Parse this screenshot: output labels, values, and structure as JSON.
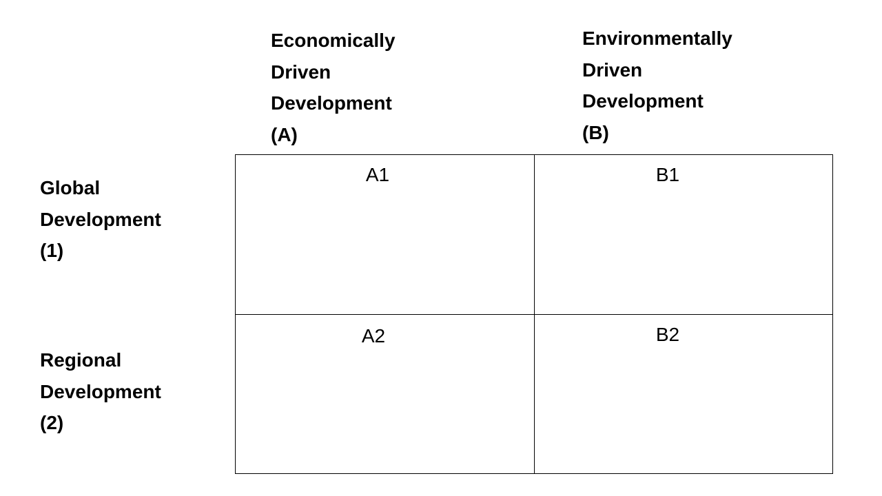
{
  "columns": [
    {
      "lines": [
        "Economically",
        "Driven",
        "Development",
        "(A)"
      ]
    },
    {
      "lines": [
        "Environmentally",
        "Driven",
        "Development",
        "(B)"
      ]
    }
  ],
  "rows": [
    {
      "lines": [
        "Global",
        "Development",
        "(1)"
      ]
    },
    {
      "lines": [
        "Regional",
        "Development",
        "(2)"
      ]
    }
  ],
  "cells": [
    [
      "A1",
      "B1"
    ],
    [
      "A2",
      "B2"
    ]
  ]
}
